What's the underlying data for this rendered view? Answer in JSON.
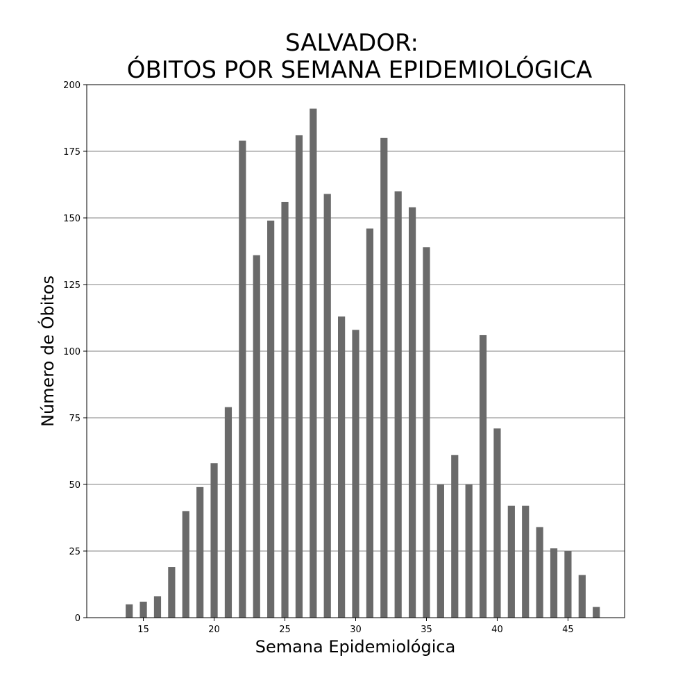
{
  "chart_data": {
    "type": "bar",
    "title_lines": [
      "SALVADOR:",
      "ÓBITOS POR SEMANA EPIDEMIOLÓGICA"
    ],
    "xlabel": "Semana Epidemiológica",
    "ylabel": "Número de Óbitos",
    "x": [
      14,
      15,
      16,
      17,
      18,
      19,
      20,
      21,
      22,
      23,
      24,
      25,
      26,
      27,
      28,
      29,
      30,
      31,
      32,
      33,
      34,
      35,
      36,
      37,
      38,
      39,
      40,
      41,
      42,
      43,
      44,
      45,
      46,
      47
    ],
    "values": [
      5,
      6,
      8,
      19,
      40,
      49,
      58,
      79,
      179,
      136,
      149,
      156,
      181,
      191,
      159,
      113,
      108,
      146,
      180,
      160,
      154,
      139,
      50,
      61,
      50,
      106,
      71,
      42,
      42,
      34,
      26,
      25,
      16,
      4
    ],
    "xlim": [
      11,
      49
    ],
    "ylim": [
      0,
      200
    ],
    "xticks": [
      15,
      20,
      25,
      30,
      35,
      40,
      45
    ],
    "yticks": [
      0,
      25,
      50,
      75,
      100,
      125,
      150,
      175,
      200
    ],
    "grid": "horizontal",
    "bar_color": "#6a6a6a",
    "grid_color": "#808080",
    "legend": "none"
  }
}
